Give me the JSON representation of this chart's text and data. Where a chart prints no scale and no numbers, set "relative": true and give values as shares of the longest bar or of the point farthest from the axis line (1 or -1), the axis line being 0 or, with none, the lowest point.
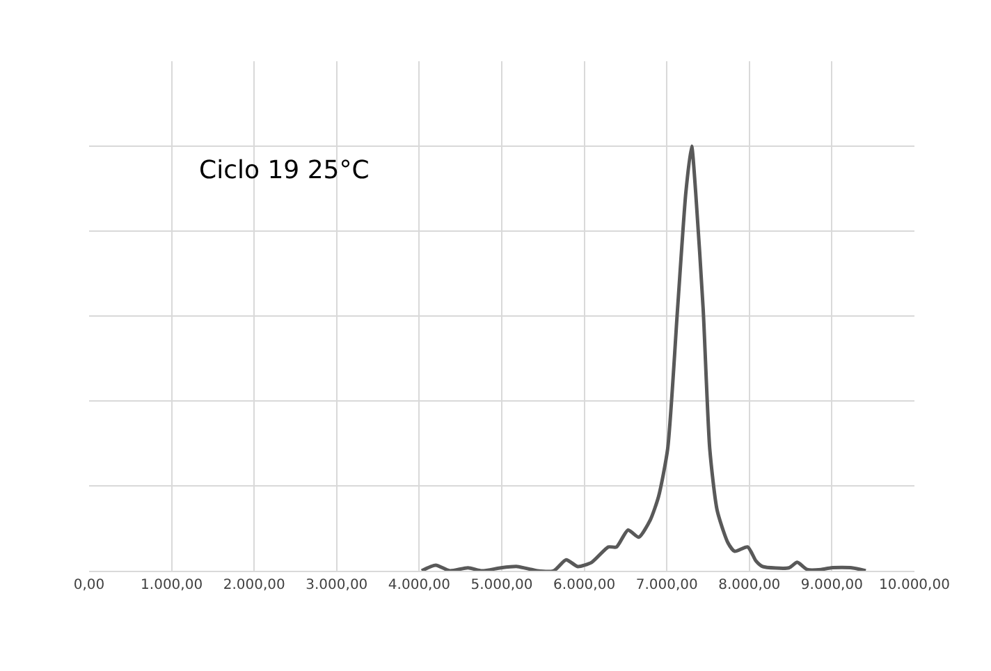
{
  "chart_data": {
    "type": "line",
    "relative": true,
    "x": [
      4030,
      4200,
      4370,
      4590,
      4760,
      4990,
      5190,
      5430,
      5630,
      5780,
      5920,
      6090,
      6290,
      6390,
      6530,
      6660,
      6800,
      6900,
      7010,
      7130,
      7230,
      7300,
      7350,
      7440,
      7520,
      7610,
      7740,
      7820,
      7980,
      8080,
      8160,
      8480,
      8580,
      8700,
      8870,
      8990,
      9240,
      9410
    ],
    "series": [
      {
        "color": "#595959",
        "values": [
          0,
          0.013,
          0,
          0.007,
          0,
          0.007,
          0.01,
          0,
          0,
          0.026,
          0.01,
          0.02,
          0.056,
          0.056,
          0.096,
          0.079,
          0.12,
          0.175,
          0.287,
          0.617,
          0.89,
          1,
          0.89,
          0.617,
          0.287,
          0.142,
          0.066,
          0.046,
          0.056,
          0.023,
          0.01,
          0.007,
          0.02,
          0.003,
          0.003,
          0.007,
          0.007,
          0
        ]
      }
    ],
    "xlim": [
      0,
      10000
    ],
    "xticks": [
      {
        "value": 0,
        "label": "0,00"
      },
      {
        "value": 1000,
        "label": "1.000,00"
      },
      {
        "value": 2000,
        "label": "2.000,00"
      },
      {
        "value": 3000,
        "label": "3.000,00"
      },
      {
        "value": 4000,
        "label": "4.000,00"
      },
      {
        "value": 5000,
        "label": "5.000,00"
      },
      {
        "value": 6000,
        "label": "6.000,00"
      },
      {
        "value": 7000,
        "label": "7.000,00"
      },
      {
        "value": 8000,
        "label": "8.000,00"
      },
      {
        "value": 9000,
        "label": "9.000,00"
      },
      {
        "value": 10000,
        "label": "10.000,00"
      }
    ],
    "grid": true,
    "marker": "none",
    "line_style": "solid",
    "annotations": [
      "Ciclo 19 25°C"
    ]
  }
}
